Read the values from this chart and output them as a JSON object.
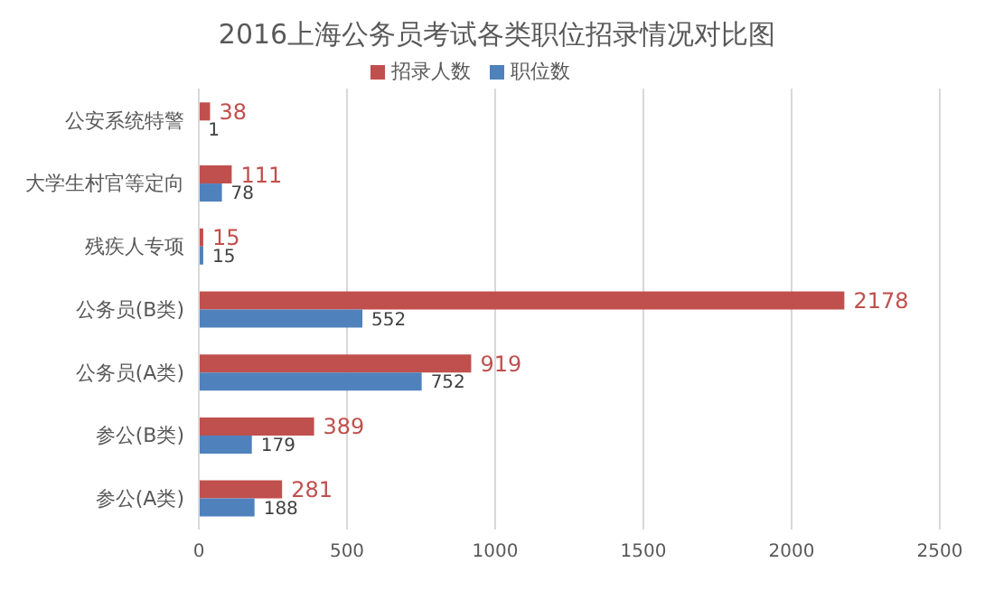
{
  "chart_data": {
    "type": "bar",
    "orientation": "horizontal",
    "title": "2016上海公务员考试各类职位招录情况对比图",
    "categories": [
      "公安系统特警",
      "大学生村官等定向",
      "残疾人专项",
      "公务员(B类)",
      "公务员(A类)",
      "参公(B类)",
      "参公(A类)"
    ],
    "series": [
      {
        "name": "招录人数",
        "color": "#c0504d",
        "values": [
          38,
          111,
          15,
          2178,
          919,
          389,
          281
        ]
      },
      {
        "name": "职位数",
        "color": "#4f81bd",
        "values": [
          1,
          78,
          15,
          552,
          752,
          179,
          188
        ]
      }
    ],
    "xlim": [
      0,
      2500
    ],
    "xticks": [
      0,
      500,
      1000,
      1500,
      2000,
      2500
    ],
    "grid": "x",
    "legend": "top",
    "data_labels": true
  }
}
